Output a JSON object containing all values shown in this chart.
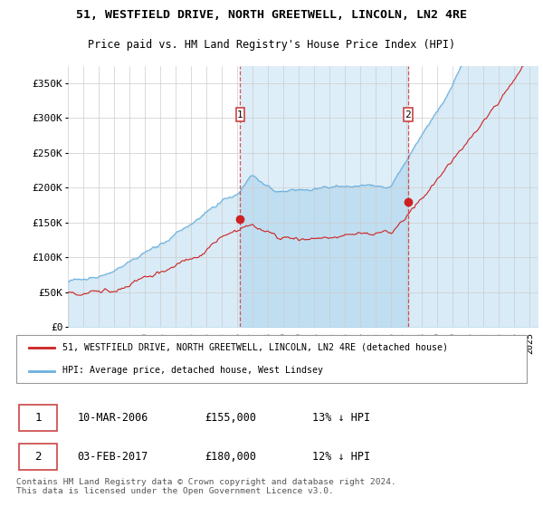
{
  "title1": "51, WESTFIELD DRIVE, NORTH GREETWELL, LINCOLN, LN2 4RE",
  "title2": "Price paid vs. HM Land Registry's House Price Index (HPI)",
  "yticks": [
    0,
    50000,
    100000,
    150000,
    200000,
    250000,
    300000,
    350000
  ],
  "ytick_labels": [
    "£0",
    "£50K",
    "£100K",
    "£150K",
    "£200K",
    "£250K",
    "£300K",
    "£350K"
  ],
  "ylim": [
    0,
    375000
  ],
  "xlim_start": 1995.0,
  "xlim_end": 2025.5,
  "sale1_x": 2006.19,
  "sale1_y": 155000,
  "sale1_label": "1",
  "sale1_date": "10-MAR-2006",
  "sale1_price": "£155,000",
  "sale1_hpi": "13% ↓ HPI",
  "sale2_x": 2017.09,
  "sale2_y": 180000,
  "sale2_label": "2",
  "sale2_date": "03-FEB-2017",
  "sale2_price": "£180,000",
  "sale2_hpi": "12% ↓ HPI",
  "hpi_color": "#6ab0de",
  "price_color": "#cc2222",
  "bg_color": "#ddeef8",
  "bg_fill_alpha": 0.35,
  "grid_color": "#cccccc",
  "vline_color": "#cc4444",
  "legend_label1": "51, WESTFIELD DRIVE, NORTH GREETWELL, LINCOLN, LN2 4RE (detached house)",
  "legend_label2": "HPI: Average price, detached house, West Lindsey",
  "footer": "Contains HM Land Registry data © Crown copyright and database right 2024.\nThis data is licensed under the Open Government Licence v3.0.",
  "xtick_years": [
    1995,
    1996,
    1997,
    1998,
    1999,
    2000,
    2001,
    2002,
    2003,
    2004,
    2005,
    2006,
    2007,
    2008,
    2009,
    2010,
    2011,
    2012,
    2013,
    2014,
    2015,
    2016,
    2017,
    2018,
    2019,
    2020,
    2021,
    2022,
    2023,
    2024,
    2025
  ]
}
